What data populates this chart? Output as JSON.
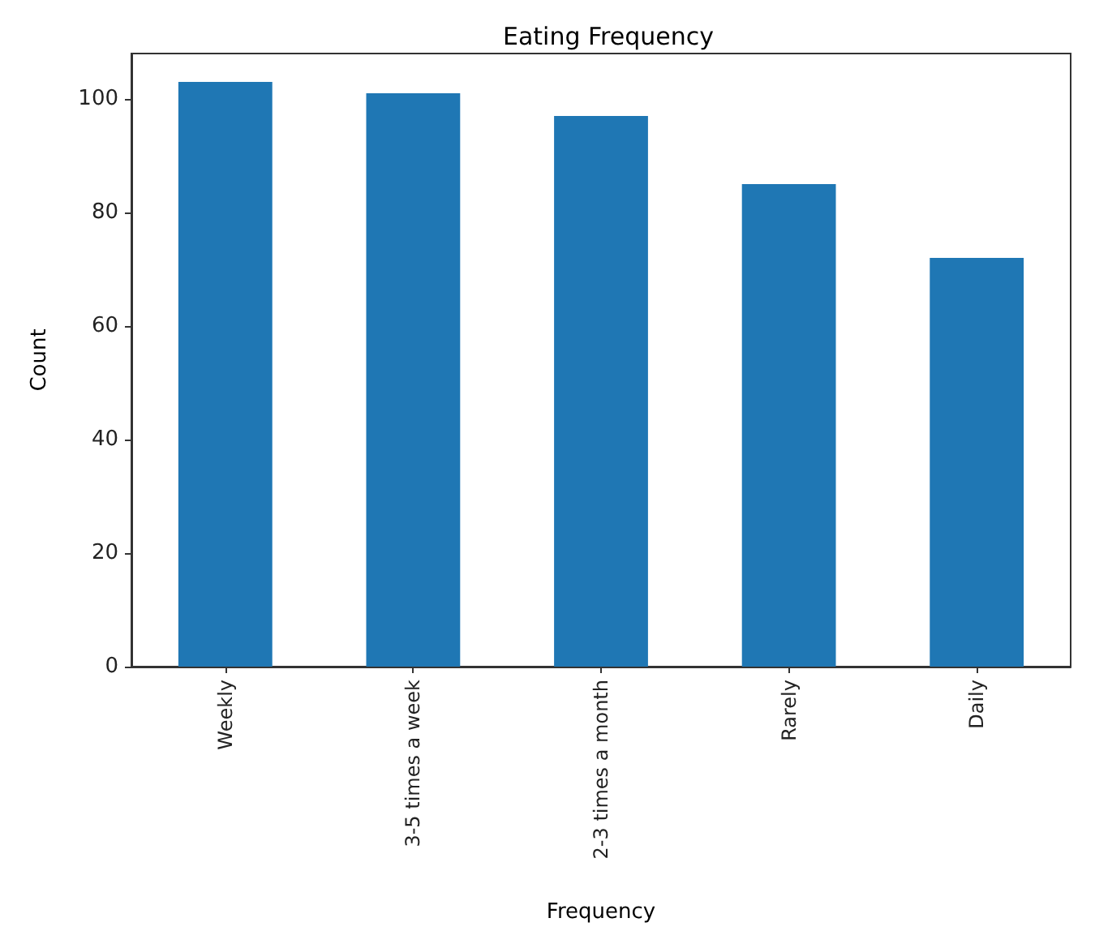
{
  "chart_data": {
    "type": "bar",
    "title": "Eating Frequency",
    "xlabel": "Frequency",
    "ylabel": "Count",
    "categories": [
      "Weekly",
      "3-5 times a week",
      "2-3 times a month",
      "Rarely",
      "Daily"
    ],
    "values": [
      103,
      101,
      97,
      85,
      72
    ],
    "color": "#1f77b4",
    "ylim": [
      0,
      108
    ],
    "yticks": [
      0,
      20,
      40,
      60,
      80,
      100
    ],
    "grid": false
  }
}
